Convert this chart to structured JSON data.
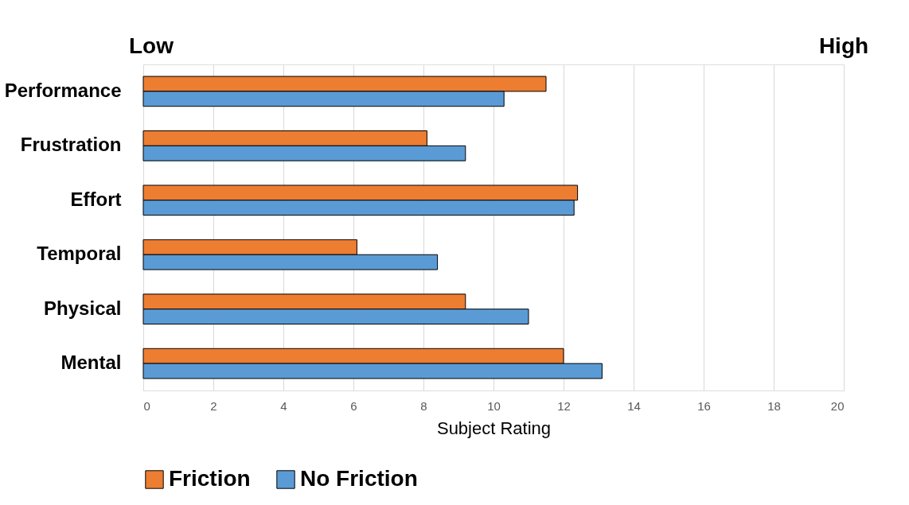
{
  "chart_data": {
    "type": "bar",
    "orientation": "horizontal",
    "xlabel": "Subject Rating",
    "categories": [
      "Performance",
      "Frustration",
      "Effort",
      "Temporal",
      "Physical",
      "Mental"
    ],
    "series": [
      {
        "name": "Friction",
        "color": "#ed7d31",
        "values": [
          11.5,
          8.1,
          12.4,
          6.1,
          9.2,
          12.0
        ]
      },
      {
        "name": "No Friction",
        "color": "#5b9bd5",
        "values": [
          10.3,
          9.2,
          12.3,
          8.4,
          11.0,
          13.1
        ]
      }
    ],
    "xlim": [
      0,
      20
    ],
    "xticks": [
      0,
      2,
      4,
      6,
      8,
      10,
      12,
      14,
      16,
      18,
      20
    ],
    "grid": "x",
    "legend": "bottom",
    "annotations": [
      "Low",
      "High"
    ]
  }
}
